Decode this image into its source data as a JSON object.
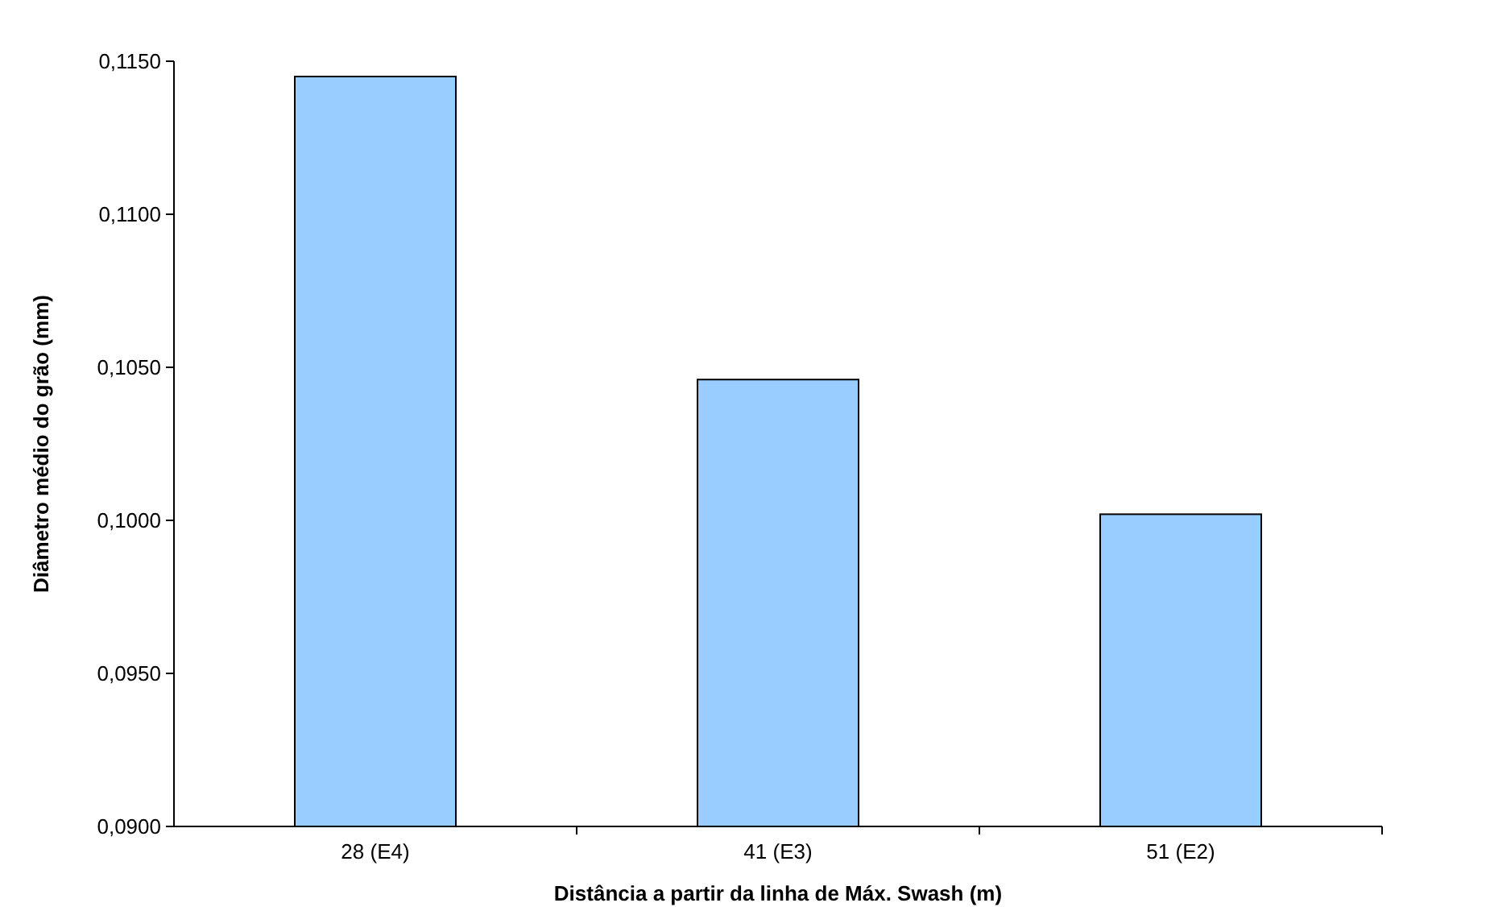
{
  "chart_data": {
    "type": "bar",
    "xlabel": "Distância a partir da linha de Máx. Swash (m)",
    "ylabel": "Diâmetro médio do grão (mm)",
    "categories": [
      "28 (E4)",
      "41 (E3)",
      "51 (E2)"
    ],
    "values": [
      0.1145,
      0.1046,
      0.1002
    ],
    "color": "#99ccff",
    "ylim": [
      0.09,
      0.115
    ],
    "yticks": [
      {
        "value": 0.09,
        "label": "0,0900"
      },
      {
        "value": 0.095,
        "label": "0,0950"
      },
      {
        "value": 0.1,
        "label": "0,1000"
      },
      {
        "value": 0.105,
        "label": "0,1050"
      },
      {
        "value": 0.11,
        "label": "0,1100"
      },
      {
        "value": 0.115,
        "label": "0,1150"
      }
    ]
  }
}
